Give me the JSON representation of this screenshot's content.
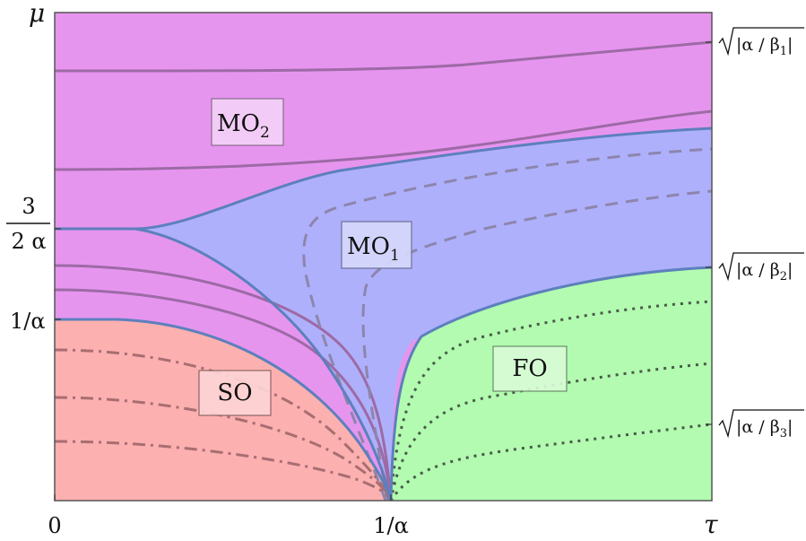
{
  "diagram": {
    "y_axis_label": "μ",
    "x_axis_label": "τ",
    "x_ticks": {
      "zero": "0",
      "inv_alpha": "1/α"
    },
    "y_ticks": {
      "three_over": "3",
      "two_alpha": "2 α",
      "inv_alpha": "1/α"
    },
    "regions": {
      "mo2": {
        "base": "MO",
        "sub": "2"
      },
      "mo1": {
        "base": "MO",
        "sub": "1"
      },
      "so": "SO",
      "fo": "FO"
    },
    "sqrt_labels": [
      {
        "pre": "|α / β",
        "sub": "1",
        "post": "|"
      },
      {
        "pre": "|α / β",
        "sub": "2",
        "post": "|"
      },
      {
        "pre": "|α / β",
        "sub": "3",
        "post": "|"
      }
    ],
    "colors": {
      "mo2": "#e695ef",
      "mo1": "#aeb0fb",
      "so": "#fcb0b0",
      "fo": "#b2fbb0",
      "boundary": "#5d80bd",
      "solid_curve": "#9d6aa5",
      "dashed_curve": "#8d85ad",
      "dotted_curve": "#4b5a4b",
      "dashdot_curve": "#a86e72"
    }
  }
}
